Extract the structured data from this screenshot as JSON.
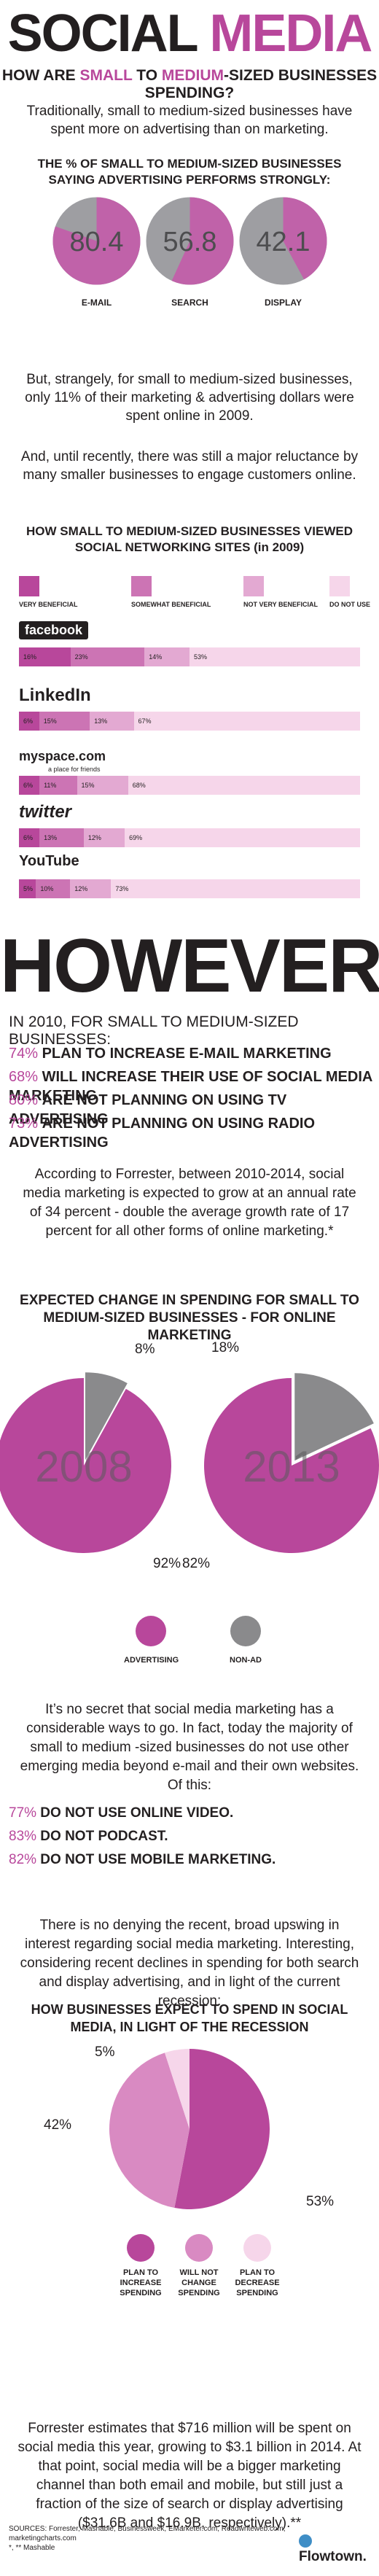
{
  "header": {
    "title_word1": "SOCIAL",
    "title_word2": "MEDIA",
    "subtitle_pre": "HOW ARE ",
    "subtitle_hl1": "SMALL",
    "subtitle_mid": " TO ",
    "subtitle_hl2": "MEDIUM",
    "subtitle_post": "-SIZED BUSINESSES SPENDING?"
  },
  "intro": {
    "text": "Traditionally, small to medium-sized businesses have spent more on advertising than on marketing."
  },
  "advertising_performance": {
    "heading": "THE % OF SMALL TO MEDIUM-SIZED BUSINESSES SAYING ADVERTISING PERFORMS STRONGLY:",
    "items": [
      {
        "value": "80.4",
        "label": "E-MAIL",
        "fraction": 0.804
      },
      {
        "value": "56.8",
        "label": "SEARCH",
        "fraction": 0.568
      },
      {
        "value": "42.1",
        "label": "DISPLAY",
        "fraction": 0.421
      }
    ]
  },
  "online_text": {
    "p1": "But, strangely, for small to medium-sized businesses, only 11% of their marketing & advertising dollars were spent online in 2009.",
    "p2": "And, until recently, there was still a major reluctance by many smaller businesses to engage customers online."
  },
  "social_sites": {
    "heading": "HOW SMALL TO MEDIUM-SIZED BUSINESSES VIEWED SOCIAL NETWORKING SITES (in 2009)",
    "legend": [
      "VERY BENEFICIAL",
      "SOMEWHAT BENEFICIAL",
      "NOT VERY BENEFICIAL",
      "DO NOT USE"
    ],
    "colors": [
      "#b8479b",
      "#cc74b4",
      "#e3a9d2",
      "#f6d6ea"
    ],
    "sites": [
      {
        "name": "facebook",
        "values": [
          16,
          23,
          14,
          53
        ],
        "labels": [
          "16%",
          "23%",
          "14%",
          "53%"
        ]
      },
      {
        "name": "LinkedIn",
        "values": [
          6,
          15,
          13,
          67
        ],
        "labels": [
          "6%",
          "15%",
          "13%",
          "67%"
        ]
      },
      {
        "name": "myspace.com",
        "tagline": "a place for friends",
        "values": [
          6,
          11,
          15,
          68
        ],
        "labels": [
          "6%",
          "11%",
          "15%",
          "68%"
        ]
      },
      {
        "name": "twitter",
        "values": [
          6,
          13,
          12,
          69
        ],
        "labels": [
          "6%",
          "13%",
          "12%",
          "69%"
        ]
      },
      {
        "name": "YouTube",
        "values": [
          5,
          10,
          12,
          73
        ],
        "labels": [
          "5%",
          "10%",
          "12%",
          "73%"
        ]
      }
    ]
  },
  "however": {
    "title": "HOWEVER",
    "intro": "IN 2010, FOR SMALL TO MEDIUM-SIZED BUSINESSES:",
    "items": [
      {
        "pct": "74%",
        "text": "PLAN TO INCREASE E-MAIL MARKETING"
      },
      {
        "pct": "68%",
        "text": "WILL INCREASE THEIR USE OF SOCIAL MEDIA MARKETING"
      },
      {
        "pct": "80%",
        "text": "ARE NOT PLANNING ON USING TV ADVERTISING"
      },
      {
        "pct": "73%",
        "text": "ARE NOT PLANNING ON USING RADIO ADVERTISING"
      }
    ],
    "forrester": "According to Forrester, between 2010-2014, social media marketing is expected to grow at an annual rate of 34 percent - double the average growth rate of 17 percent for all other forms of online marketing.*"
  },
  "spending_change": {
    "heading": "EXPECTED CHANGE IN SPENDING FOR SMALL TO MEDIUM-SIZED BUSINESSES - FOR ONLINE MARKETING",
    "pies": [
      {
        "year": "2008",
        "advertising": 92,
        "non_ad": 8,
        "adv_label": "92%",
        "non_label": "8%"
      },
      {
        "year": "2013",
        "advertising": 82,
        "non_ad": 18,
        "adv_label": "82%",
        "non_label": "18%"
      }
    ],
    "legend": [
      "ADVERTISING",
      "NON-AD"
    ],
    "colors": {
      "advertising": "#b8479b",
      "non_ad": "#8a8a8c"
    }
  },
  "emerging": {
    "text": "It’s no secret that social media marketing has a considerable ways to go. In fact, today the majority of small to medium -sized businesses do not use other emerging media beyond e-mail and their own websites. Of this:",
    "items": [
      {
        "pct": "77%",
        "text": " DO NOT USE ONLINE VIDEO."
      },
      {
        "pct": "83%",
        "text": " DO NOT PODCAST."
      },
      {
        "pct": "82%",
        "text": " DO NOT USE MOBILE MARKETING."
      }
    ]
  },
  "recession": {
    "text": "There is no denying the recent, broad upswing in interest regarding social media marketing. Interesting, considering recent declines in spending for both search and display advertising, and in light of the current recession:",
    "heading": "HOW BUSINESSES EXPECT TO SPEND IN SOCIAL MEDIA, IN LIGHT OF THE RECESSION",
    "chart": {
      "type": "pie",
      "values": [
        53,
        42,
        5
      ],
      "labels": [
        "53%",
        "42%",
        "5%"
      ],
      "categories": [
        "PLAN TO INCREASE SPENDING",
        "WILL NOT CHANGE SPENDING",
        "PLAN TO DECREASE SPENDING"
      ],
      "colors": [
        "#b8479b",
        "#d98ac2",
        "#f6d6ea"
      ]
    }
  },
  "closing": {
    "text": "Forrester estimates that $716 million will be spent on social media this year, growing to $3.1 billion in 2014. At that point, social media will be a bigger marketing channel than both email and mobile, but still just a fraction of the size of search or display advertising ($31.6B and $16.9B, respectively).**"
  },
  "footer": {
    "sources": "SOURCES: Forrester, Mashable, Businessweek, EMarketer.com, Readwriteweb.com, marketingcharts.com",
    "notes": "*, ** Mashable",
    "brand": "Flowtown."
  }
}
